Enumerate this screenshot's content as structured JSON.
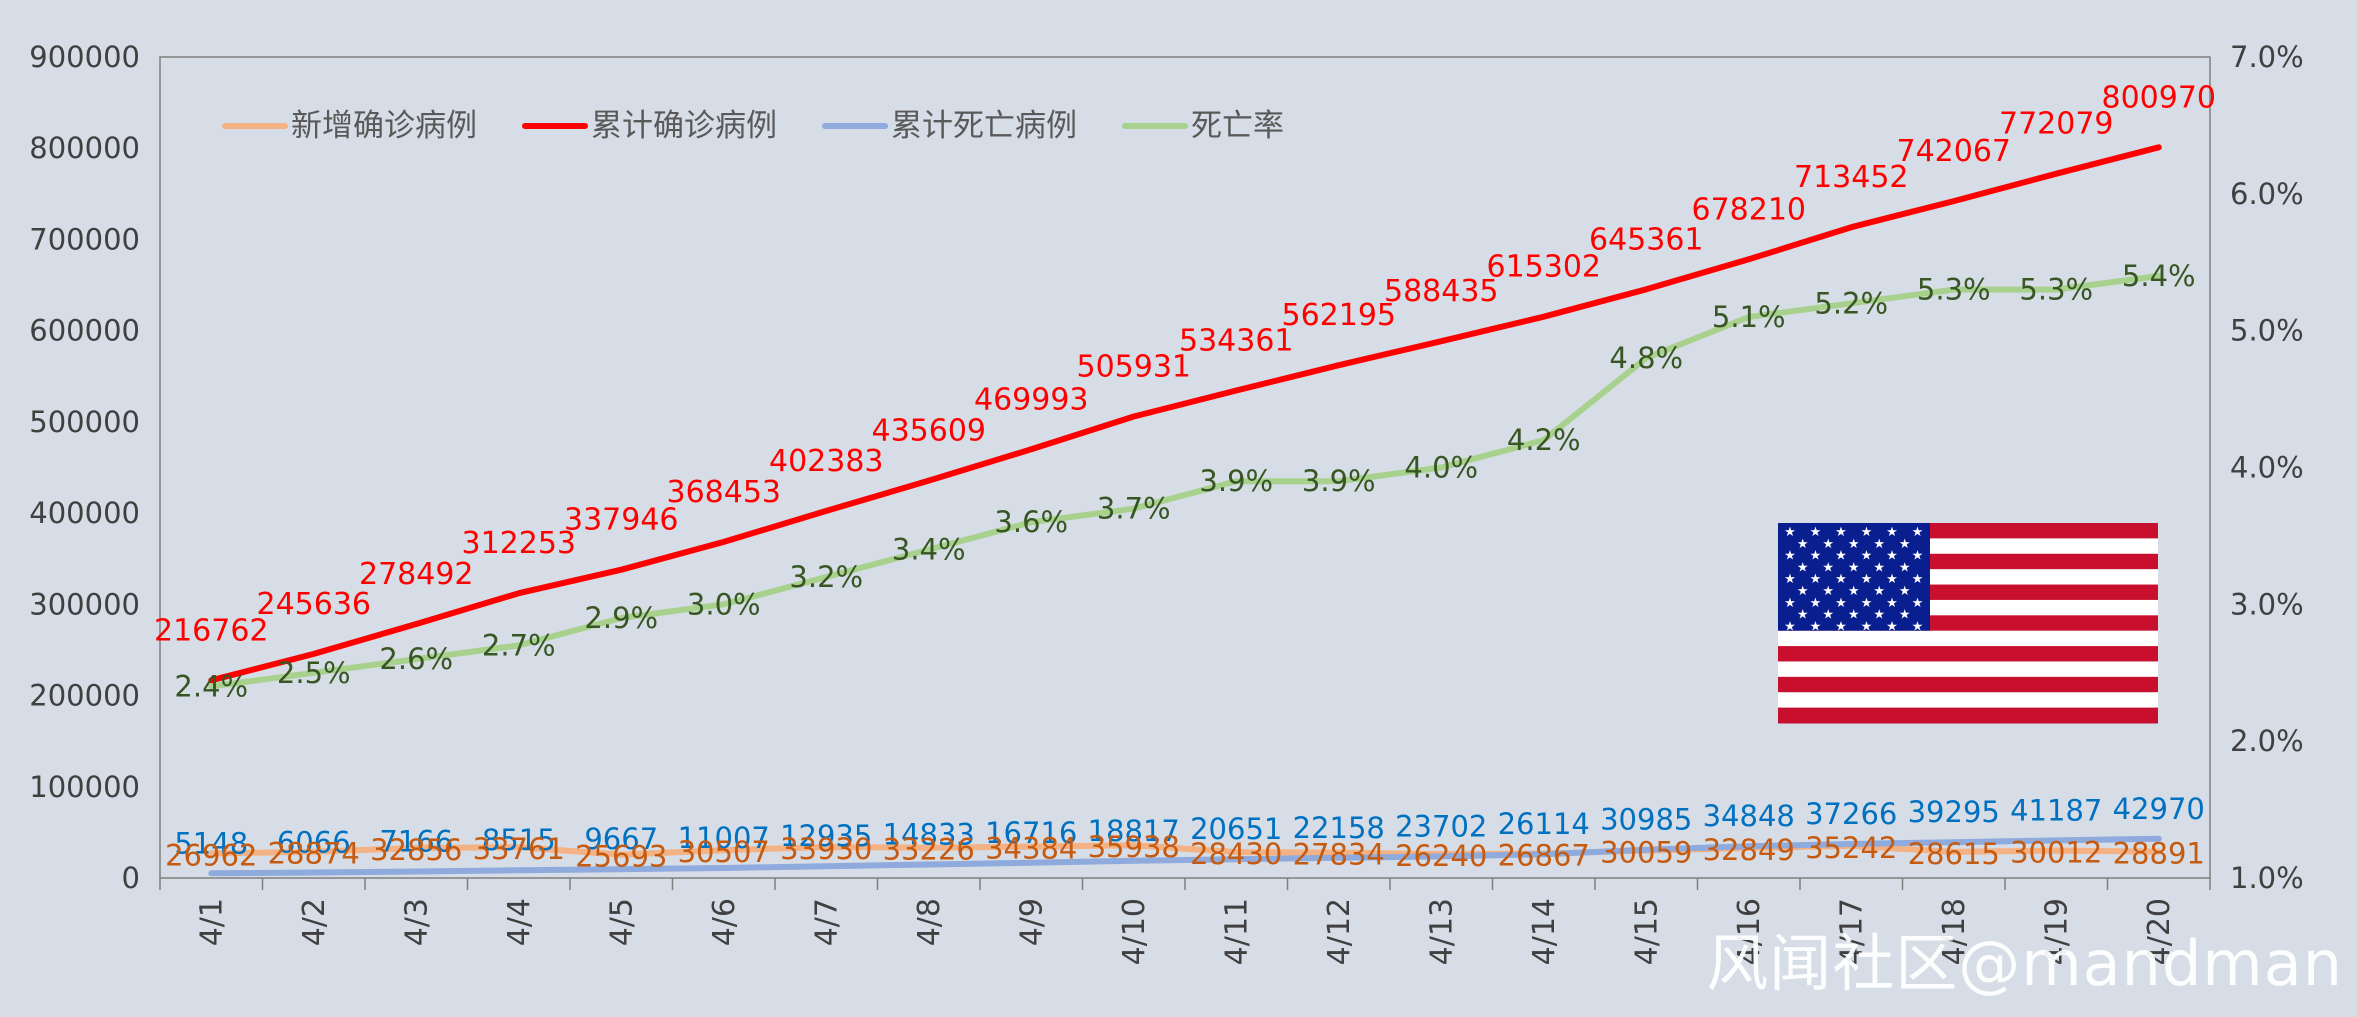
{
  "chart_data": {
    "type": "line",
    "x": [
      "4/1",
      "4/2",
      "4/3",
      "4/4",
      "4/5",
      "4/6",
      "4/7",
      "4/8",
      "4/9",
      "4/10",
      "4/11",
      "4/12",
      "4/13",
      "4/14",
      "4/15",
      "4/16",
      "4/17",
      "4/18",
      "4/19",
      "4/20"
    ],
    "y_left_ticks": [
      "0",
      "100000",
      "200000",
      "300000",
      "400000",
      "500000",
      "600000",
      "700000",
      "800000",
      "900000"
    ],
    "y_right_ticks": [
      "1.0%",
      "2.0%",
      "3.0%",
      "4.0%",
      "5.0%",
      "6.0%",
      "7.0%"
    ],
    "ylim_left": [
      0,
      900000
    ],
    "ylim_right": [
      0.01,
      0.07
    ],
    "series": [
      {
        "name": "新增确诊病例",
        "axis": "left",
        "color": "#f4b183",
        "label_color": "#c55a11",
        "values": [
          26962,
          28874,
          32856,
          33761,
          25693,
          30507,
          33930,
          33226,
          34384,
          35938,
          28430,
          27834,
          26240,
          26867,
          30059,
          32849,
          35242,
          28615,
          30012,
          28891
        ]
      },
      {
        "name": "累计确诊病例",
        "axis": "left",
        "color": "#ff0000",
        "label_color": "#ff0000",
        "values": [
          216762,
          245636,
          278492,
          312253,
          337946,
          368453,
          402383,
          435609,
          469993,
          505931,
          534361,
          562195,
          588435,
          615302,
          645361,
          678210,
          713452,
          742067,
          772079,
          800970
        ]
      },
      {
        "name": "累计死亡病例",
        "axis": "left",
        "color": "#8faadc",
        "label_color": "#0070c0",
        "values": [
          5148,
          6066,
          7166,
          8515,
          9667,
          11007,
          12935,
          14833,
          16716,
          18817,
          20651,
          22158,
          23702,
          26114,
          30985,
          34848,
          37266,
          39295,
          41187,
          42970
        ]
      },
      {
        "name": "死亡率",
        "axis": "right",
        "color": "#a9d18e",
        "label_color": "#375623",
        "values": [
          0.024,
          0.025,
          0.026,
          0.027,
          0.029,
          0.03,
          0.032,
          0.034,
          0.036,
          0.037,
          0.039,
          0.039,
          0.04,
          0.042,
          0.048,
          0.051,
          0.052,
          0.053,
          0.053,
          0.054
        ],
        "labels": [
          "2.4%",
          "2.5%",
          "2.6%",
          "2.7%",
          "2.9%",
          "3.0%",
          "3.2%",
          "3.4%",
          "3.6%",
          "3.7%",
          "3.9%",
          "3.9%",
          "4.0%",
          "4.2%",
          "4.8%",
          "5.1%",
          "5.2%",
          "5.3%",
          "5.3%",
          "5.4%"
        ]
      }
    ],
    "legend_position": "top-left",
    "grid": false
  },
  "flag": {
    "name": "us-flag",
    "red": "#c8102e",
    "white": "#ffffff",
    "blue": "#0a1f8f"
  },
  "watermark": "风闻社区@mandman"
}
